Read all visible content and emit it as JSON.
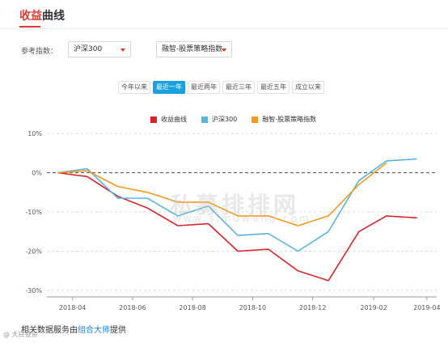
{
  "header": {
    "title_part1": "收益",
    "title_part2": "曲线"
  },
  "controls": {
    "ref_label": "参考指数：",
    "index_select_value": "沪深300",
    "strategy_select_value": "融智-股票策略指数"
  },
  "tabs": [
    {
      "label": "今年以来",
      "active": false
    },
    {
      "label": "最近一年",
      "active": true
    },
    {
      "label": "最近两年",
      "active": false
    },
    {
      "label": "最近三年",
      "active": false
    },
    {
      "label": "最近五年",
      "active": false
    },
    {
      "label": "成立以来",
      "active": false
    }
  ],
  "watermark": {
    "line1": "私募排排网",
    "line2": "www.simuwang.com"
  },
  "footer": {
    "prefix": "相关数据服务由",
    "link": "组合大师",
    "suffix": "提供"
  },
  "corner_mark": "@ 大白投资",
  "colors": {
    "series1": "#d6262c",
    "series2": "#5ab4e0",
    "series3": "#f39a1e",
    "tab_active": "#18a0e0"
  },
  "chart_data": {
    "type": "line",
    "ylim": [
      -30,
      10
    ],
    "yticks": [
      10,
      0,
      -10,
      -20,
      -30
    ],
    "ytick_labels": [
      "10%",
      "0%",
      "-10%",
      "-20%",
      "-30%"
    ],
    "x_tick_labels": [
      "2018-04",
      "2018-06",
      "2018-08",
      "2018-10",
      "2018-12",
      "2019-02",
      "2019-04"
    ],
    "x": [
      "2018-03-31",
      "2018-04-30",
      "2018-05-31",
      "2018-06-30",
      "2018-07-31",
      "2018-08-31",
      "2018-09-30",
      "2018-10-31",
      "2018-11-30",
      "2018-12-31",
      "2019-01-31",
      "2019-02-28",
      "2019-03-31"
    ],
    "legend_position": "top-center",
    "grid": "horizontal-dashed",
    "series": [
      {
        "name": "收益曲线",
        "color": "#d6262c",
        "values": [
          0,
          -1,
          -6,
          -9,
          -13.5,
          -13,
          -20,
          -19.5,
          -25,
          -27.5,
          -15,
          -11,
          -11.5
        ]
      },
      {
        "name": "沪深300",
        "color": "#5ab4e0",
        "values": [
          0,
          1,
          -6.5,
          -6.5,
          -11,
          -8.5,
          -16,
          -15.5,
          -20,
          -15,
          -2,
          3,
          3.5
        ]
      },
      {
        "name": "融智-股票策略指数",
        "color": "#f39a1e",
        "values": [
          0,
          0.5,
          -3.5,
          -5,
          -7.5,
          -7.5,
          -11,
          -11,
          -13.5,
          -11,
          -3,
          2.5,
          null
        ]
      }
    ]
  }
}
